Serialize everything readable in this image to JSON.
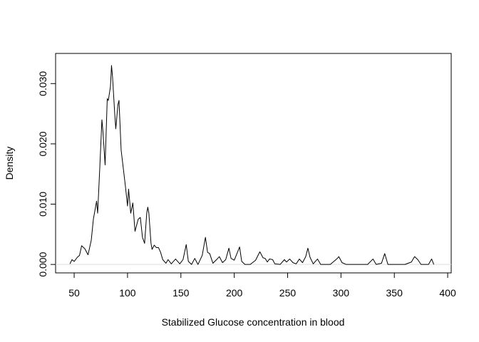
{
  "chart_data": {
    "type": "line",
    "xlabel": "Stabilized Glucose concentration in blood",
    "ylabel": "Density",
    "color": "#000000",
    "xlim": [
      32.6,
      403.3
    ],
    "ylim": [
      -0.0014,
      0.035
    ],
    "xticks": [
      50,
      100,
      150,
      200,
      250,
      300,
      350,
      400
    ],
    "yticks": [
      {
        "value": 0,
        "label": "0.000"
      },
      {
        "value": 0.01,
        "label": "0.010"
      },
      {
        "value": 0.02,
        "label": "0.020"
      },
      {
        "value": 0.03,
        "label": "0.030"
      }
    ],
    "x": [
      46,
      48,
      50,
      53,
      55,
      57,
      60,
      63,
      66,
      68,
      70,
      71,
      72,
      74,
      76,
      77,
      79,
      81,
      82,
      84,
      85,
      86,
      88,
      89,
      91,
      92,
      94,
      96,
      98,
      100,
      101,
      103,
      105,
      107,
      110,
      112,
      114,
      116,
      118,
      119,
      120,
      122,
      123,
      125,
      127,
      129,
      131,
      133,
      136,
      138,
      141,
      145,
      149,
      152,
      155,
      157,
      160,
      163,
      166,
      170,
      173,
      175,
      177,
      180,
      184,
      186,
      189,
      192,
      195,
      197,
      200,
      203,
      205,
      207,
      210,
      215,
      220,
      224,
      227,
      229,
      231,
      233,
      236,
      238,
      243,
      247,
      249,
      252,
      255,
      258,
      261,
      264,
      267,
      269,
      271,
      274,
      278,
      281,
      290,
      296,
      298,
      301,
      305,
      325,
      330,
      333,
      338,
      341,
      344,
      360,
      366,
      369,
      372,
      375,
      382,
      385,
      387
    ],
    "series": [
      {
        "values": [
          0.0001,
          0.0008,
          0.0005,
          0.0012,
          0.0015,
          0.0031,
          0.0026,
          0.0016,
          0.004,
          0.0075,
          0.0095,
          0.0105,
          0.0085,
          0.016,
          0.024,
          0.022,
          0.0165,
          0.0275,
          0.0272,
          0.0295,
          0.033,
          0.031,
          0.025,
          0.0225,
          0.0265,
          0.0272,
          0.019,
          0.016,
          0.013,
          0.0097,
          0.0125,
          0.0085,
          0.0102,
          0.0055,
          0.0075,
          0.0078,
          0.0045,
          0.0035,
          0.0085,
          0.0095,
          0.0085,
          0.0035,
          0.0025,
          0.0032,
          0.0028,
          0.0028,
          0.002,
          0.0008,
          0.0002,
          0.0008,
          0.0001,
          0.0009,
          0.0001,
          0.0008,
          0.0033,
          0.0005,
          0,
          0.001,
          0,
          0.0015,
          0.0045,
          0.002,
          0.0018,
          0.0002,
          0.0009,
          0.0013,
          0.0003,
          0.0008,
          0.0027,
          0.001,
          0.0007,
          0.002,
          0.0029,
          0.0005,
          0,
          0,
          0.0007,
          0.0021,
          0.0011,
          0.001,
          0.0004,
          0.0009,
          0.0008,
          0.0001,
          0,
          0.0008,
          0.0004,
          0.0009,
          0.0003,
          0.0001,
          0.0009,
          0.0003,
          0.0013,
          0.0027,
          0.0012,
          0.0001,
          0.0009,
          0,
          0,
          0.0009,
          0.0013,
          0.0003,
          0,
          0,
          0.0009,
          0,
          0.0002,
          0.0018,
          0,
          0,
          0.0004,
          0.0013,
          0.0008,
          0,
          0,
          0.0009,
          0
        ]
      }
    ]
  }
}
